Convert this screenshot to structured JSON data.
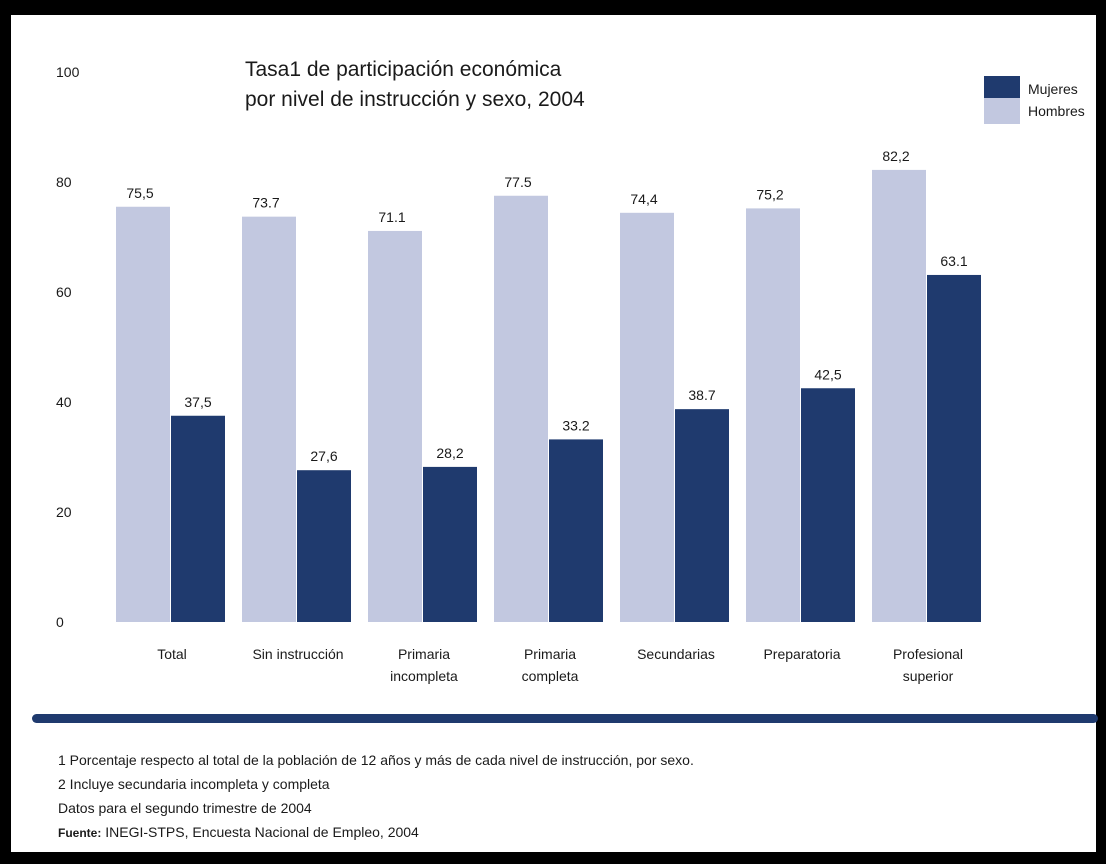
{
  "chart_data": {
    "type": "bar",
    "title_line1": "Tasa1 de participación económica",
    "title_line2": "por nivel de instrucción y sexo, 2004",
    "categories": [
      [
        "Total"
      ],
      [
        "Sin instrucción"
      ],
      [
        "Primaria",
        "incompleta"
      ],
      [
        "Primaria",
        "completa"
      ],
      [
        "Secundarias"
      ],
      [
        "Preparatoria"
      ],
      [
        "Profesional",
        "superior"
      ]
    ],
    "series": [
      {
        "name": "Hombres",
        "color": "#c2c8e0",
        "values": [
          75.5,
          73.7,
          71.1,
          77.5,
          74.4,
          75.2,
          82.2
        ],
        "labels": [
          "75,5",
          "73.7",
          "71.1",
          "77.5",
          "74,4",
          "75,2",
          "82,2"
        ]
      },
      {
        "name": "Mujeres",
        "color": "#1f3a6e",
        "values": [
          37.5,
          27.6,
          28.2,
          33.2,
          38.7,
          42.5,
          63.1
        ],
        "labels": [
          "37,5",
          "27,6",
          "28,2",
          "33.2",
          "38.7",
          "42,5",
          "63.1"
        ]
      }
    ],
    "yticks": [
      "0",
      "20",
      "40",
      "60",
      "80",
      "100"
    ],
    "ylim": [
      0,
      100
    ],
    "legend_position": "top-right",
    "grid": false
  },
  "legend": {
    "mujeres": "Mujeres",
    "hombres": "Hombres"
  },
  "notes": {
    "note1": "1 Porcentaje respecto al total de la población de 12 años y más de cada nivel de instrucción, por sexo.",
    "note2": "2 Incluye secundaria incompleta y completa",
    "note3": "Datos para el segundo trimestre de 2004",
    "source_label": "Fuente:",
    "source_text": " INEGI-STPS, Encuesta Nacional de Empleo, 2004"
  }
}
